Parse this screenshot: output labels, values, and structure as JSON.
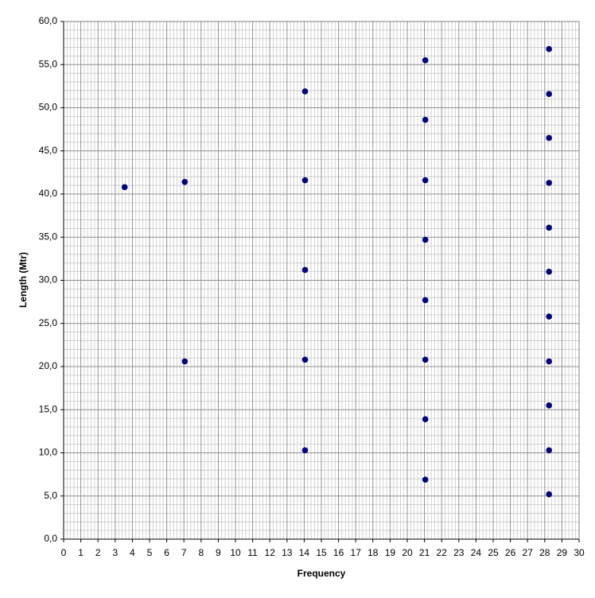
{
  "chart_data": {
    "type": "scatter",
    "x_label": "Frequency",
    "y_label": "Length (Mtr)",
    "series": [
      {
        "color": "#000080",
        "x": [
          3.55,
          7.05,
          7.05,
          14.05,
          14.05,
          14.05,
          14.05,
          14.05,
          21.05,
          21.05,
          21.05,
          21.05,
          21.05,
          21.05,
          21.05,
          21.05,
          28.25,
          28.25,
          28.25,
          28.25,
          28.25,
          28.25,
          28.25,
          28.25,
          28.25,
          28.25,
          28.25
        ],
        "values": [
          40.8,
          41.4,
          20.6,
          51.9,
          41.6,
          31.2,
          20.8,
          10.3,
          55.5,
          48.6,
          41.6,
          34.7,
          27.7,
          20.8,
          13.9,
          6.9,
          56.8,
          51.6,
          46.5,
          41.3,
          36.1,
          31.0,
          25.8,
          20.6,
          15.5,
          10.3,
          5.2
        ]
      }
    ],
    "xlim": [
      0,
      30
    ],
    "xticks": [
      0,
      1,
      2,
      3,
      4,
      5,
      6,
      7,
      8,
      9,
      10,
      11,
      12,
      13,
      14,
      15,
      16,
      17,
      18,
      19,
      20,
      21,
      22,
      23,
      24,
      25,
      26,
      27,
      28,
      29,
      30
    ],
    "ylim": [
      0,
      60
    ],
    "yticks": [
      {
        "value": 0,
        "label": "0,0"
      },
      {
        "value": 5,
        "label": "5,0"
      },
      {
        "value": 10,
        "label": "10,0"
      },
      {
        "value": 15,
        "label": "15,0"
      },
      {
        "value": 20,
        "label": "20,0"
      },
      {
        "value": 25,
        "label": "25,0"
      },
      {
        "value": 30,
        "label": "30,0"
      },
      {
        "value": 35,
        "label": "35,0"
      },
      {
        "value": 40,
        "label": "40,0"
      },
      {
        "value": 45,
        "label": "45,0"
      },
      {
        "value": 50,
        "label": "50,0"
      },
      {
        "value": 55,
        "label": "55,0"
      },
      {
        "value": 60,
        "label": "60,0"
      }
    ],
    "grid": true,
    "minor_grid": true
  }
}
